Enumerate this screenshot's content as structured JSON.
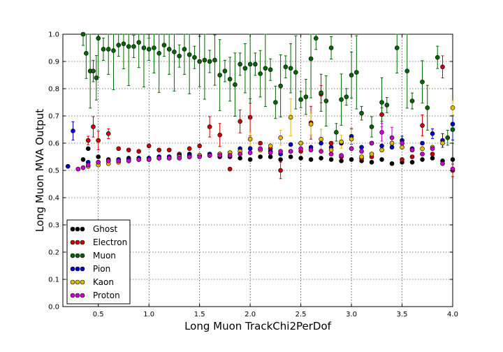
{
  "chart_data": {
    "type": "scatter",
    "xlabel": "Long Muon TrackChi2PerDof",
    "ylabel": "Long Muon MVA Output",
    "xlim": [
      0.15,
      4.0
    ],
    "ylim": [
      0.0,
      1.0
    ],
    "xticks": [
      "0.5",
      "1.0",
      "1.5",
      "2.0",
      "2.5",
      "3.0",
      "3.5",
      "4.0"
    ],
    "yticks": [
      "0.0",
      "0.1",
      "0.2",
      "0.3",
      "0.4",
      "0.5",
      "0.6",
      "0.7",
      "0.8",
      "0.9",
      "1.0"
    ],
    "grid": true,
    "legend_position": "lower-left",
    "error_bars": true,
    "series": [
      {
        "name": "Ghost",
        "color": "#000000",
        "points": [
          [
            0.35,
            0.54
          ],
          [
            0.4,
            0.58
          ],
          [
            0.5,
            0.55
          ],
          [
            0.6,
            0.54
          ],
          [
            0.7,
            0.54
          ],
          [
            0.8,
            0.545
          ],
          [
            0.9,
            0.545
          ],
          [
            1.0,
            0.545
          ],
          [
            1.1,
            0.55
          ],
          [
            1.2,
            0.55
          ],
          [
            1.3,
            0.555
          ],
          [
            1.4,
            0.56
          ],
          [
            1.5,
            0.555
          ],
          [
            1.6,
            0.555
          ],
          [
            1.7,
            0.55
          ],
          [
            1.8,
            0.55
          ],
          [
            1.9,
            0.545
          ],
          [
            2.0,
            0.54
          ],
          [
            2.1,
            0.55
          ],
          [
            2.2,
            0.55
          ],
          [
            2.3,
            0.54
          ],
          [
            2.4,
            0.55
          ],
          [
            2.5,
            0.545
          ],
          [
            2.6,
            0.54
          ],
          [
            2.7,
            0.545
          ],
          [
            2.8,
            0.54
          ],
          [
            2.9,
            0.535
          ],
          [
            3.0,
            0.54
          ],
          [
            3.1,
            0.535
          ],
          [
            3.2,
            0.53
          ],
          [
            3.3,
            0.54
          ],
          [
            3.4,
            0.525
          ],
          [
            3.5,
            0.53
          ],
          [
            3.6,
            0.53
          ],
          [
            3.7,
            0.54
          ],
          [
            3.8,
            0.545
          ],
          [
            3.9,
            0.535
          ],
          [
            4.0,
            0.54
          ]
        ]
      },
      {
        "name": "Electron",
        "color": "#cc0000",
        "points": [
          [
            0.4,
            0.61
          ],
          [
            0.45,
            0.66
          ],
          [
            0.5,
            0.61
          ],
          [
            0.6,
            0.635
          ],
          [
            0.7,
            0.58
          ],
          [
            0.8,
            0.575
          ],
          [
            0.9,
            0.57
          ],
          [
            1.0,
            0.59
          ],
          [
            1.1,
            0.575
          ],
          [
            1.2,
            0.575
          ],
          [
            1.3,
            0.56
          ],
          [
            1.4,
            0.58
          ],
          [
            1.5,
            0.59
          ],
          [
            1.6,
            0.66
          ],
          [
            1.7,
            0.63
          ],
          [
            1.8,
            0.505
          ],
          [
            1.9,
            0.68
          ],
          [
            2.0,
            0.695
          ],
          [
            2.1,
            0.6
          ],
          [
            2.2,
            0.58
          ],
          [
            2.3,
            0.5
          ],
          [
            2.4,
            0.57
          ],
          [
            2.5,
            0.57
          ],
          [
            2.6,
            0.675
          ],
          [
            2.7,
            0.78
          ],
          [
            2.8,
            0.6
          ],
          [
            2.9,
            0.55
          ],
          [
            3.0,
            0.58
          ],
          [
            3.1,
            0.545
          ],
          [
            3.2,
            0.55
          ],
          [
            3.3,
            0.705
          ],
          [
            3.4,
            0.6
          ],
          [
            3.5,
            0.54
          ],
          [
            3.6,
            0.55
          ],
          [
            3.7,
            0.665
          ],
          [
            3.8,
            0.56
          ],
          [
            3.9,
            0.88
          ],
          [
            4.0,
            0.5
          ]
        ]
      },
      {
        "name": "Muon",
        "color": "#006600",
        "points": [
          [
            0.35,
            1.0
          ],
          [
            0.38,
            0.93
          ],
          [
            0.42,
            0.865
          ],
          [
            0.45,
            0.865
          ],
          [
            0.48,
            0.84
          ],
          [
            0.5,
            0.985
          ],
          [
            0.55,
            0.945
          ],
          [
            0.6,
            0.945
          ],
          [
            0.65,
            0.94
          ],
          [
            0.7,
            0.96
          ],
          [
            0.75,
            0.965
          ],
          [
            0.8,
            0.955
          ],
          [
            0.85,
            0.955
          ],
          [
            0.9,
            0.97
          ],
          [
            0.95,
            0.95
          ],
          [
            1.0,
            0.945
          ],
          [
            1.05,
            0.95
          ],
          [
            1.1,
            0.93
          ],
          [
            1.15,
            0.96
          ],
          [
            1.2,
            0.945
          ],
          [
            1.25,
            0.935
          ],
          [
            1.3,
            0.92
          ],
          [
            1.35,
            0.945
          ],
          [
            1.4,
            0.925
          ],
          [
            1.45,
            0.915
          ],
          [
            1.5,
            0.9
          ],
          [
            1.55,
            0.905
          ],
          [
            1.6,
            0.9
          ],
          [
            1.65,
            0.905
          ],
          [
            1.7,
            0.85
          ],
          [
            1.75,
            0.865
          ],
          [
            1.8,
            0.835
          ],
          [
            1.85,
            0.815
          ],
          [
            1.9,
            0.89
          ],
          [
            1.95,
            0.875
          ],
          [
            2.0,
            0.89
          ],
          [
            2.05,
            0.89
          ],
          [
            2.1,
            0.855
          ],
          [
            2.15,
            0.875
          ],
          [
            2.2,
            0.87
          ],
          [
            2.25,
            0.75
          ],
          [
            2.3,
            0.81
          ],
          [
            2.35,
            0.88
          ],
          [
            2.4,
            0.875
          ],
          [
            2.45,
            0.86
          ],
          [
            2.5,
            0.76
          ],
          [
            2.55,
            0.77
          ],
          [
            2.6,
            0.91
          ],
          [
            2.65,
            0.985
          ],
          [
            2.7,
            0.785
          ],
          [
            2.75,
            0.755
          ],
          [
            2.8,
            0.95
          ],
          [
            2.85,
            0.64
          ],
          [
            2.9,
            0.76
          ],
          [
            2.95,
            0.77
          ],
          [
            3.0,
            0.85
          ],
          [
            3.05,
            0.86
          ],
          [
            3.1,
            0.71
          ],
          [
            3.2,
            0.66
          ],
          [
            3.3,
            0.75
          ],
          [
            3.35,
            0.74
          ],
          [
            3.45,
            0.95
          ],
          [
            3.55,
            0.865
          ],
          [
            3.6,
            0.755
          ],
          [
            3.7,
            0.825
          ],
          [
            3.75,
            0.73
          ],
          [
            3.85,
            0.915
          ],
          [
            3.95,
            0.62
          ],
          [
            4.0,
            0.65
          ]
        ]
      },
      {
        "name": "Pion",
        "color": "#0000cc",
        "points": [
          [
            0.2,
            0.515
          ],
          [
            0.25,
            0.645
          ],
          [
            0.4,
            0.53
          ],
          [
            0.5,
            0.53
          ],
          [
            0.6,
            0.535
          ],
          [
            0.7,
            0.54
          ],
          [
            0.8,
            0.54
          ],
          [
            0.9,
            0.545
          ],
          [
            1.0,
            0.545
          ],
          [
            1.1,
            0.55
          ],
          [
            1.2,
            0.55
          ],
          [
            1.3,
            0.555
          ],
          [
            1.4,
            0.555
          ],
          [
            1.5,
            0.555
          ],
          [
            1.6,
            0.56
          ],
          [
            1.7,
            0.56
          ],
          [
            1.8,
            0.565
          ],
          [
            1.9,
            0.58
          ],
          [
            2.0,
            0.58
          ],
          [
            2.1,
            0.575
          ],
          [
            2.2,
            0.57
          ],
          [
            2.3,
            0.56
          ],
          [
            2.4,
            0.595
          ],
          [
            2.5,
            0.6
          ],
          [
            2.6,
            0.585
          ],
          [
            2.7,
            0.6
          ],
          [
            2.8,
            0.585
          ],
          [
            2.9,
            0.6
          ],
          [
            3.0,
            0.625
          ],
          [
            3.1,
            0.585
          ],
          [
            3.2,
            0.6
          ],
          [
            3.3,
            0.59
          ],
          [
            3.4,
            0.585
          ],
          [
            3.5,
            0.61
          ],
          [
            3.6,
            0.58
          ],
          [
            3.7,
            0.6
          ],
          [
            3.8,
            0.635
          ],
          [
            3.9,
            0.61
          ],
          [
            4.0,
            0.67
          ]
        ]
      },
      {
        "name": "Kaon",
        "color": "#e6b800",
        "points": [
          [
            0.4,
            0.515
          ],
          [
            0.5,
            0.52
          ],
          [
            0.6,
            0.525
          ],
          [
            0.7,
            0.53
          ],
          [
            0.8,
            0.535
          ],
          [
            0.9,
            0.54
          ],
          [
            1.0,
            0.54
          ],
          [
            1.1,
            0.545
          ],
          [
            1.2,
            0.545
          ],
          [
            1.3,
            0.55
          ],
          [
            1.4,
            0.55
          ],
          [
            1.5,
            0.555
          ],
          [
            1.6,
            0.555
          ],
          [
            1.7,
            0.56
          ],
          [
            1.8,
            0.565
          ],
          [
            1.9,
            0.57
          ],
          [
            2.0,
            0.615
          ],
          [
            2.1,
            0.575
          ],
          [
            2.2,
            0.59
          ],
          [
            2.3,
            0.62
          ],
          [
            2.4,
            0.695
          ],
          [
            2.5,
            0.6
          ],
          [
            2.6,
            0.67
          ],
          [
            2.7,
            0.615
          ],
          [
            2.8,
            0.575
          ],
          [
            2.9,
            0.605
          ],
          [
            3.0,
            0.615
          ],
          [
            3.1,
            0.55
          ],
          [
            3.2,
            0.56
          ],
          [
            3.3,
            0.575
          ],
          [
            3.4,
            0.6
          ],
          [
            3.5,
            0.585
          ],
          [
            3.6,
            0.575
          ],
          [
            3.7,
            0.58
          ],
          [
            3.8,
            0.585
          ],
          [
            3.9,
            0.6
          ],
          [
            4.0,
            0.73
          ]
        ]
      },
      {
        "name": "Proton",
        "color": "#cc00cc",
        "points": [
          [
            0.3,
            0.505
          ],
          [
            0.35,
            0.51
          ],
          [
            0.4,
            0.52
          ],
          [
            0.5,
            0.53
          ],
          [
            0.6,
            0.535
          ],
          [
            0.7,
            0.535
          ],
          [
            0.8,
            0.535
          ],
          [
            0.9,
            0.54
          ],
          [
            1.0,
            0.54
          ],
          [
            1.1,
            0.545
          ],
          [
            1.2,
            0.545
          ],
          [
            1.3,
            0.545
          ],
          [
            1.4,
            0.55
          ],
          [
            1.5,
            0.55
          ],
          [
            1.6,
            0.555
          ],
          [
            1.7,
            0.555
          ],
          [
            1.8,
            0.555
          ],
          [
            1.9,
            0.56
          ],
          [
            2.0,
            0.565
          ],
          [
            2.1,
            0.58
          ],
          [
            2.2,
            0.565
          ],
          [
            2.3,
            0.57
          ],
          [
            2.4,
            0.57
          ],
          [
            2.5,
            0.58
          ],
          [
            2.6,
            0.575
          ],
          [
            2.7,
            0.57
          ],
          [
            2.8,
            0.56
          ],
          [
            2.9,
            0.555
          ],
          [
            3.0,
            0.58
          ],
          [
            3.1,
            0.57
          ],
          [
            3.2,
            0.6
          ],
          [
            3.3,
            0.64
          ],
          [
            3.4,
            0.62
          ],
          [
            3.5,
            0.6
          ],
          [
            3.6,
            0.575
          ],
          [
            3.7,
            0.56
          ],
          [
            3.8,
            0.58
          ],
          [
            3.9,
            0.525
          ],
          [
            4.0,
            0.505
          ]
        ]
      }
    ]
  }
}
